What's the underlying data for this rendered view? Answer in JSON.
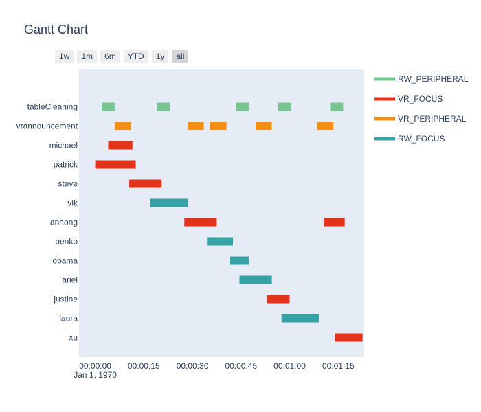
{
  "chart_data": {
    "type": "gantt",
    "title": "Gantt Chart",
    "range_buttons": [
      "1w",
      "1m",
      "6m",
      "YTD",
      "1y",
      "all"
    ],
    "active_range": "all",
    "x_unit": "seconds",
    "xlim": [
      -5,
      83
    ],
    "x_ticks": [
      {
        "value": 0,
        "label": "00:00:00",
        "sublabel": "Jan 1, 1970"
      },
      {
        "value": 15,
        "label": "00:00:15",
        "sublabel": ""
      },
      {
        "value": 30,
        "label": "00:00:30",
        "sublabel": ""
      },
      {
        "value": 45,
        "label": "00:00:45",
        "sublabel": ""
      },
      {
        "value": 60,
        "label": "00:01:00",
        "sublabel": ""
      },
      {
        "value": 75,
        "label": "00:01:15",
        "sublabel": ""
      }
    ],
    "categories": [
      "tableCleaning",
      "vrannouncement",
      "michael",
      "patrick",
      "steve",
      "vlk",
      "anhong",
      "benko",
      "obama",
      "ariel",
      "justine",
      "laura",
      "xu"
    ],
    "series": [
      {
        "name": "RW_PERIPHERAL",
        "color": "#77c591",
        "tasks": [
          {
            "row": "tableCleaning",
            "start": 2.0,
            "end": 6.0
          },
          {
            "row": "tableCleaning",
            "start": 19.0,
            "end": 23.0
          },
          {
            "row": "tableCleaning",
            "start": 43.5,
            "end": 47.5
          },
          {
            "row": "tableCleaning",
            "start": 56.5,
            "end": 60.5
          },
          {
            "row": "tableCleaning",
            "start": 72.5,
            "end": 76.5
          }
        ]
      },
      {
        "name": "VR_FOCUS",
        "color": "#e2341d",
        "tasks": [
          {
            "row": "michael",
            "start": 4.0,
            "end": 11.5
          },
          {
            "row": "patrick",
            "start": 0.0,
            "end": 12.5
          },
          {
            "row": "steve",
            "start": 10.5,
            "end": 20.5
          },
          {
            "row": "anhong",
            "start": 27.5,
            "end": 37.5
          },
          {
            "row": "anhong",
            "start": 70.5,
            "end": 77.0
          },
          {
            "row": "justine",
            "start": 53.0,
            "end": 60.0
          },
          {
            "row": "xu",
            "start": 74.0,
            "end": 82.5
          }
        ]
      },
      {
        "name": "VR_PERIPHERAL",
        "color": "#f39013",
        "tasks": [
          {
            "row": "vrannouncement",
            "start": 6.0,
            "end": 11.0
          },
          {
            "row": "vrannouncement",
            "start": 28.5,
            "end": 33.5
          },
          {
            "row": "vrannouncement",
            "start": 35.5,
            "end": 40.5
          },
          {
            "row": "vrannouncement",
            "start": 49.5,
            "end": 54.5
          },
          {
            "row": "vrannouncement",
            "start": 68.5,
            "end": 73.5
          }
        ]
      },
      {
        "name": "RW_FOCUS",
        "color": "#37a2a5",
        "tasks": [
          {
            "row": "vlk",
            "start": 17.0,
            "end": 28.5
          },
          {
            "row": "benko",
            "start": 34.5,
            "end": 42.5
          },
          {
            "row": "obama",
            "start": 41.5,
            "end": 47.5
          },
          {
            "row": "ariel",
            "start": 44.5,
            "end": 54.5
          },
          {
            "row": "laura",
            "start": 57.5,
            "end": 69.0
          }
        ]
      }
    ],
    "legend_order": [
      "RW_PERIPHERAL",
      "VR_FOCUS",
      "VR_PERIPHERAL",
      "RW_FOCUS"
    ],
    "legend_position": "right",
    "grid": false,
    "plot_background": "#e5ecf6"
  }
}
